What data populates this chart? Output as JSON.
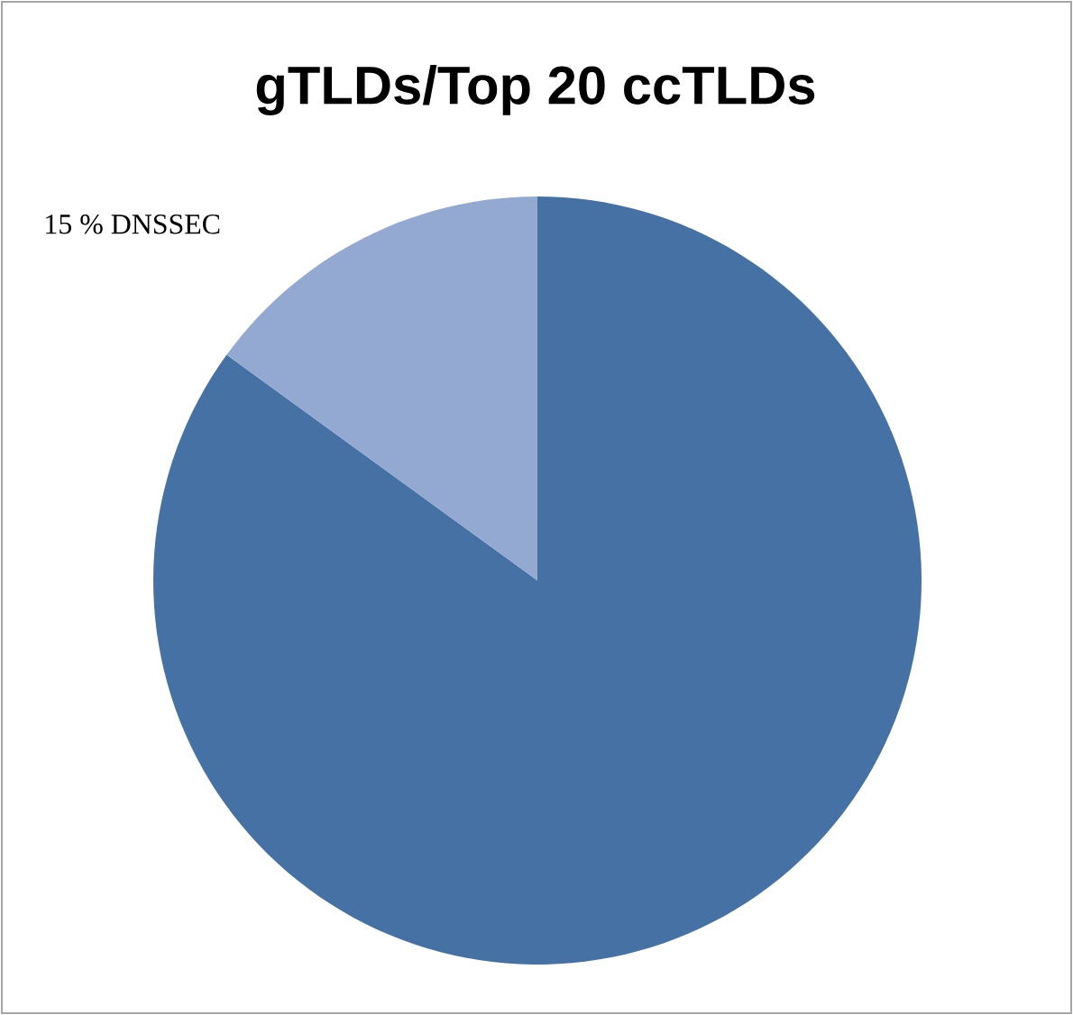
{
  "chart_data": {
    "type": "pie",
    "title": "gTLDs/Top 20 ccTLDs",
    "categories": [
      null,
      "15 % DNSSEC"
    ],
    "values": [
      85,
      15
    ],
    "colors": [
      "#4671a5",
      "#93a9d1"
    ]
  }
}
